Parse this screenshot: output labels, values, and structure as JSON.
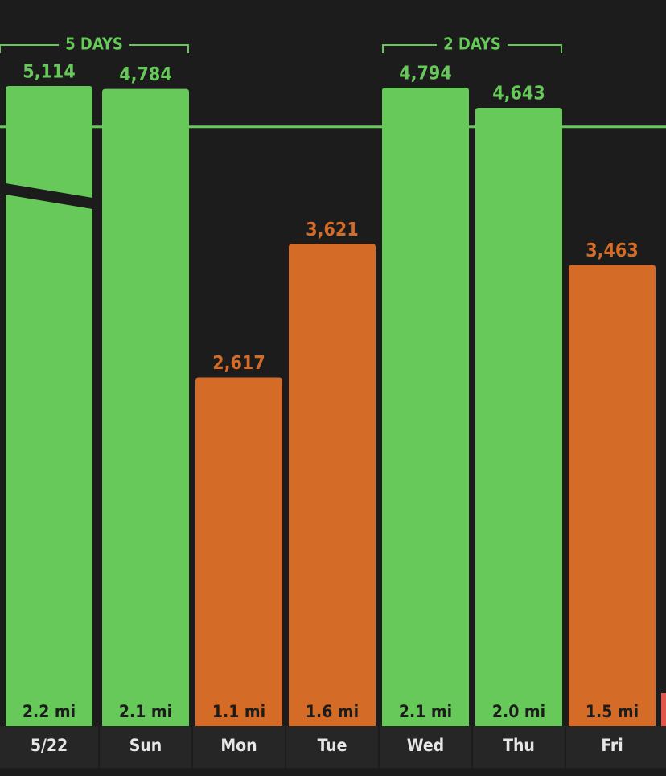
{
  "chart_data": {
    "type": "bar",
    "categories": [
      "5/22",
      "Sun",
      "Mon",
      "Tue",
      "Wed",
      "Thu",
      "Fri"
    ],
    "values": [
      5114,
      4784,
      2617,
      3621,
      4794,
      4643,
      3463
    ],
    "value_labels": [
      "5,114",
      "4,784",
      "2,617",
      "3,621",
      "4,794",
      "4,643",
      "3,463"
    ],
    "colors": [
      "#66c95a",
      "#66c95a",
      "#d46b27",
      "#d46b27",
      "#66c95a",
      "#66c95a",
      "#d46b27"
    ],
    "distances": [
      "2.2 mi",
      "2.1 mi",
      "1.1 mi",
      "1.6 mi",
      "2.1 mi",
      "2.0 mi",
      "1.5 mi"
    ],
    "annotations": [
      "5 DAYS",
      "2 DAYS"
    ],
    "goal": 4500,
    "goal_color": "#66c95a",
    "ylim": [
      0,
      4800
    ]
  }
}
